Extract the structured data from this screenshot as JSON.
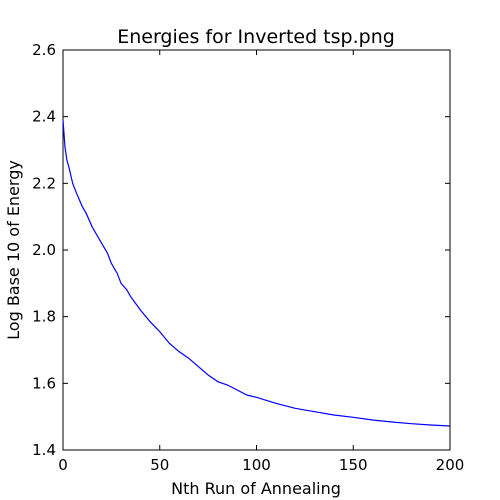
{
  "chart_data": {
    "type": "line",
    "title": "Energies for Inverted tsp.png",
    "xlabel": "Nth Run of Annealing",
    "ylabel": "Log Base 10 of Energy",
    "xlim": [
      0,
      200
    ],
    "ylim": [
      1.4,
      2.6
    ],
    "x_ticks": [
      0,
      50,
      100,
      150,
      200
    ],
    "x_tick_labels": [
      "0",
      "50",
      "100",
      "150",
      "200"
    ],
    "y_ticks": [
      1.4,
      1.6,
      1.8,
      2.0,
      2.2,
      2.4,
      2.6
    ],
    "y_tick_labels": [
      "1.4",
      "1.6",
      "1.8",
      "2.0",
      "2.2",
      "2.4",
      "2.6"
    ],
    "grid": false,
    "line_color": "#0000ff",
    "series": [
      {
        "x": [
          0,
          1,
          2,
          3,
          5,
          7,
          10,
          12,
          15,
          18,
          20,
          23,
          25,
          28,
          30,
          33,
          35,
          40,
          45,
          50,
          55,
          60,
          65,
          70,
          75,
          80,
          85,
          90,
          95,
          100,
          110,
          120,
          130,
          140,
          150,
          160,
          170,
          180,
          190,
          200
        ],
        "values": [
          2.39,
          2.31,
          2.27,
          2.25,
          2.2,
          2.17,
          2.13,
          2.11,
          2.07,
          2.04,
          2.02,
          1.99,
          1.96,
          1.93,
          1.9,
          1.88,
          1.86,
          1.82,
          1.785,
          1.755,
          1.72,
          1.695,
          1.675,
          1.65,
          1.625,
          1.605,
          1.595,
          1.58,
          1.565,
          1.558,
          1.54,
          1.525,
          1.515,
          1.505,
          1.498,
          1.49,
          1.484,
          1.479,
          1.475,
          1.472
        ]
      }
    ]
  }
}
